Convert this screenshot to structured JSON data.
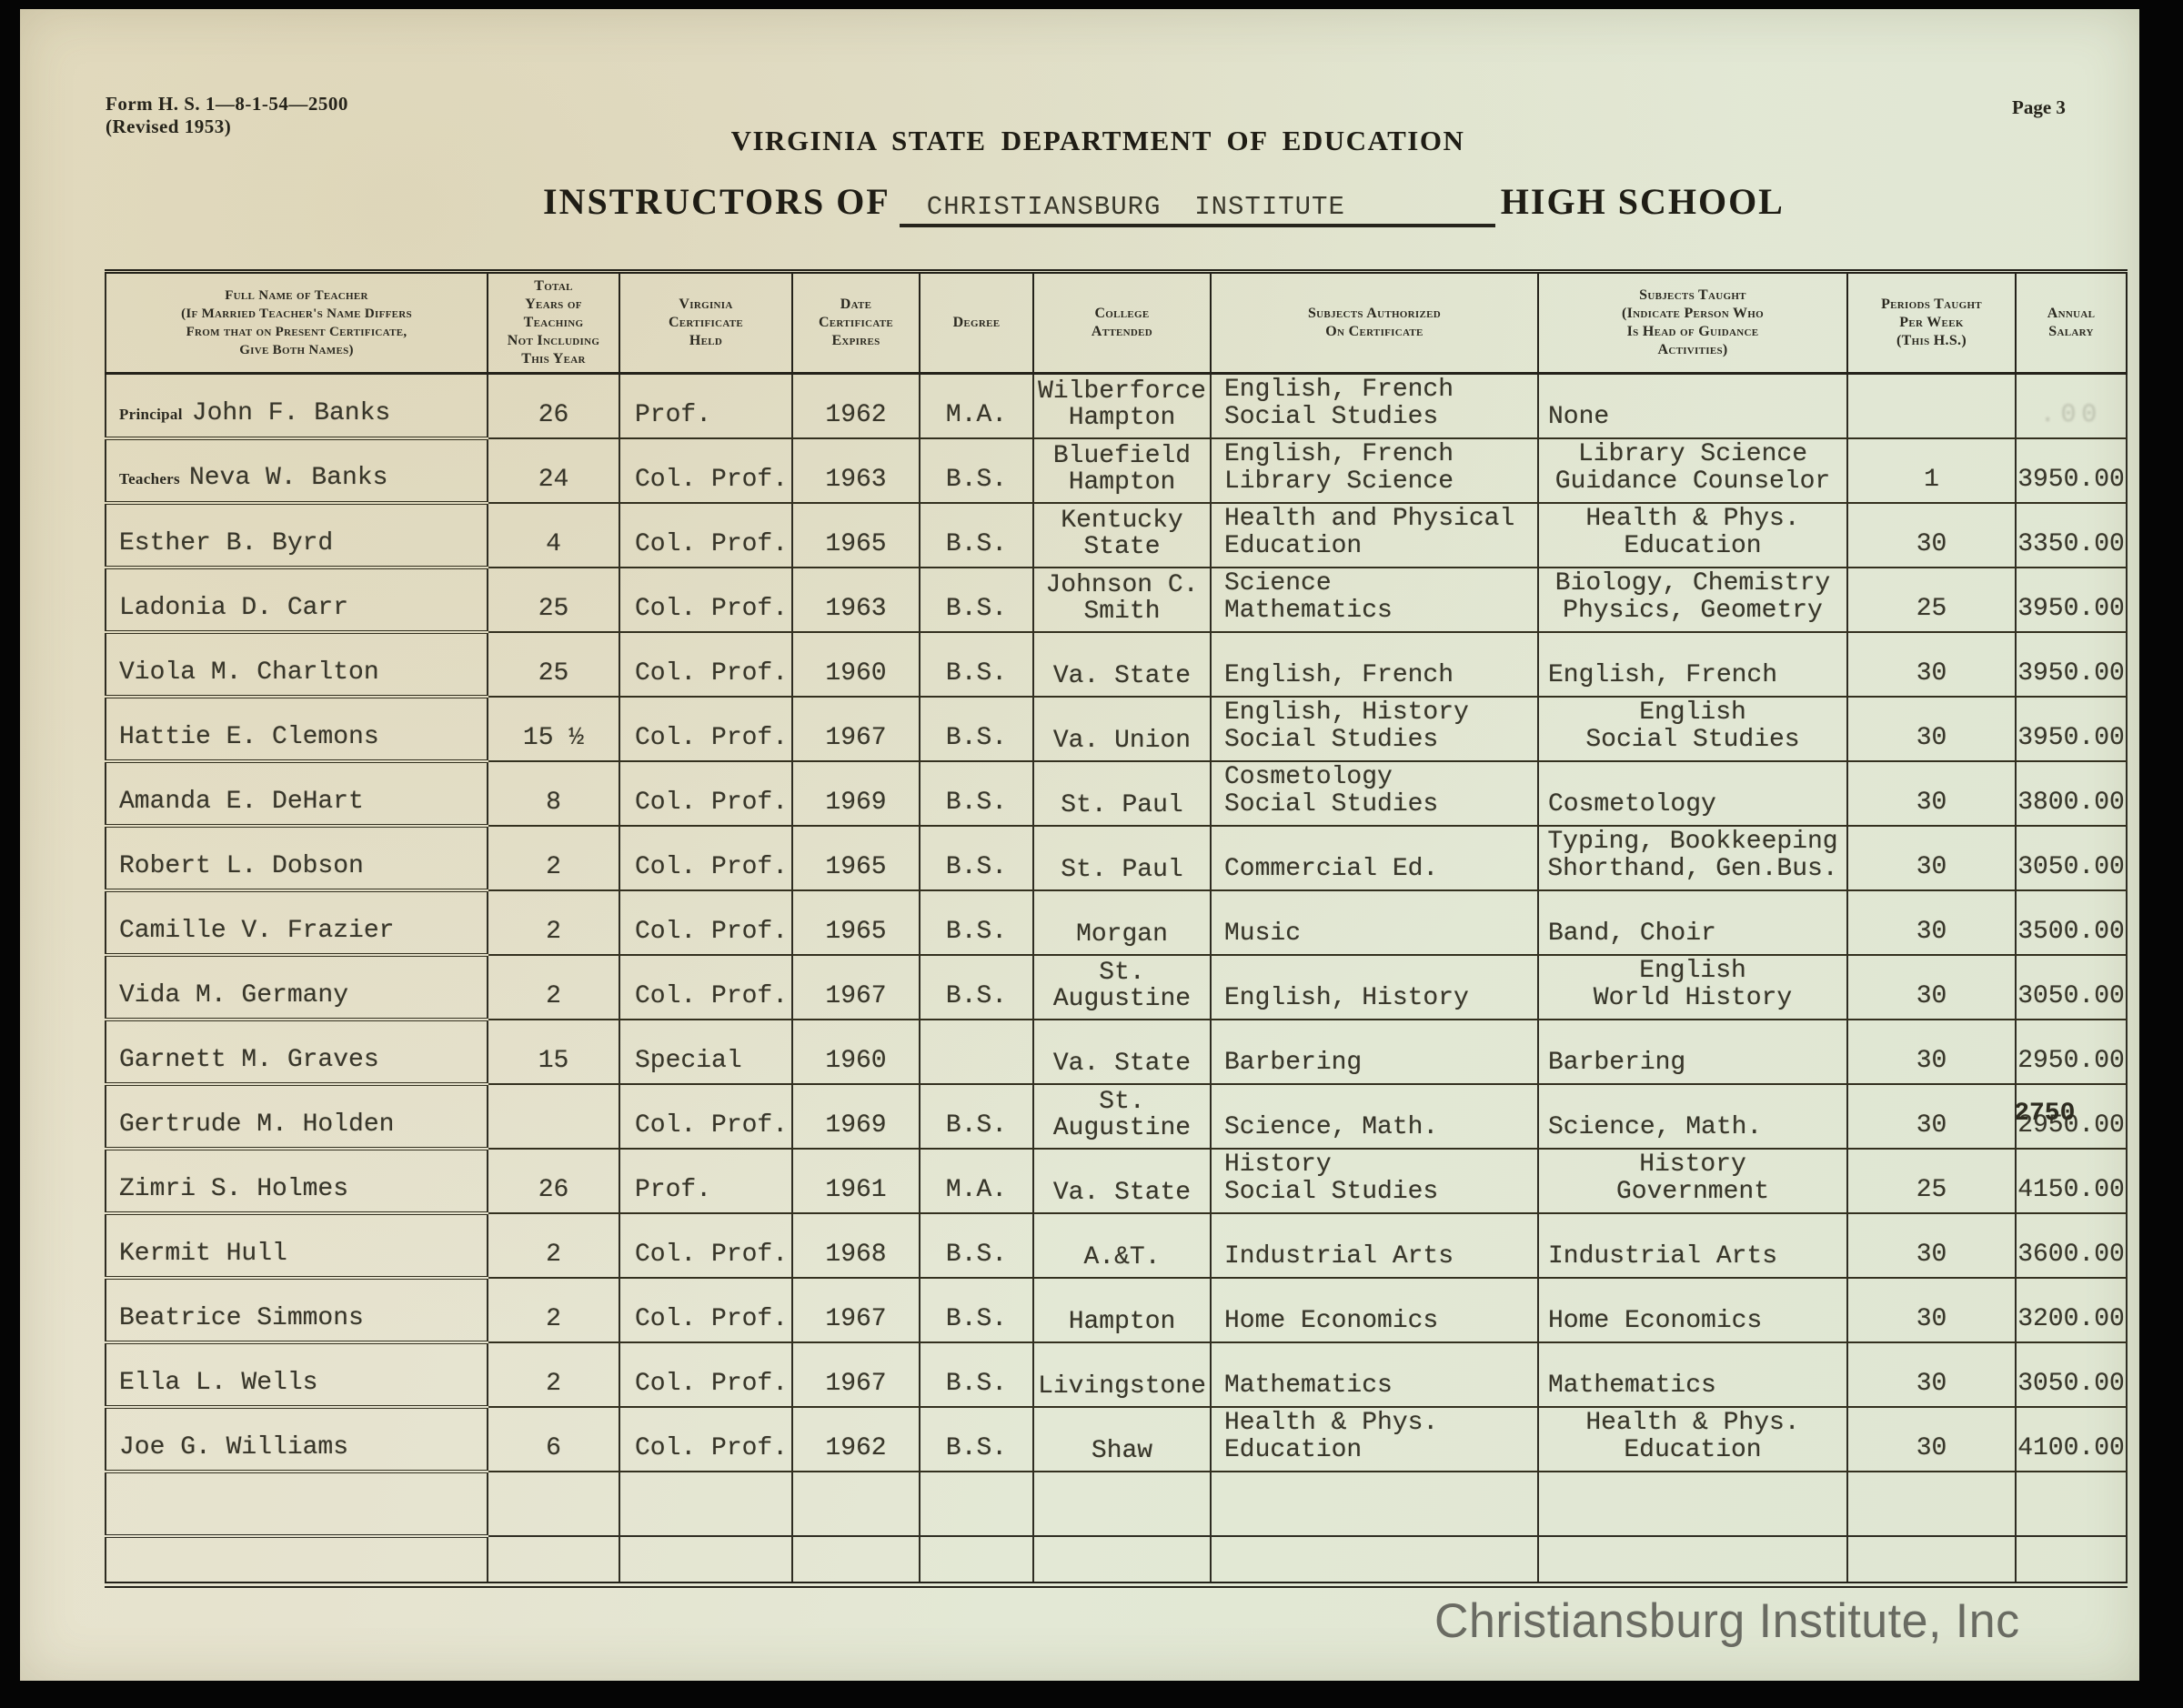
{
  "meta": {
    "form_number": "Form H. S. 1—8-1-54—2500",
    "revision": "(Revised 1953)",
    "page": "Page 3"
  },
  "header": {
    "department": "VIRGINIA STATE DEPARTMENT OF EDUCATION",
    "instructors_of": "INSTRUCTORS OF",
    "school_name": "CHRISTIANSBURG  INSTITUTE",
    "high_school": "HIGH SCHOOL"
  },
  "table": {
    "columns": [
      [
        "Full Name of Teacher",
        "(If Married Teacher's Name Differs",
        "From that on Present Certificate,",
        "Give Both Names)"
      ],
      [
        "Total",
        "Years of",
        "Teaching",
        "Not Including",
        "This Year"
      ],
      [
        "Virginia",
        "Certificate",
        "Held"
      ],
      [
        "Date",
        "Certificate",
        "Expires"
      ],
      [
        "Degree"
      ],
      [
        "College",
        "Attended"
      ],
      [
        "Subjects Authorized",
        "On Certificate"
      ],
      [
        "Subjects Taught",
        "(Indicate Person Who",
        "Is Head of Guidance",
        "Activities)"
      ],
      [
        "Periods Taught",
        "Per Week",
        "(This H.S.)"
      ],
      [
        "Annual",
        "Salary"
      ]
    ],
    "rows": [
      {
        "label": "Principal",
        "name": "John F. Banks",
        "years": "26",
        "cert": "Prof.",
        "expires": "1962",
        "degree": "M.A.",
        "college": [
          "Wilberforce",
          "Hampton"
        ],
        "auth": [
          "English, French",
          "Social Studies"
        ],
        "taught": [
          "None"
        ],
        "periods": "",
        "salary": "",
        "salary_faint": ".00"
      },
      {
        "label": "Teachers",
        "name": "Neva W. Banks",
        "years": "24",
        "cert": "Col. Prof.",
        "expires": "1963",
        "degree": "B.S.",
        "college": [
          "Bluefield",
          "Hampton"
        ],
        "auth": [
          "English, French",
          "Library Science"
        ],
        "taught": [
          "Library Science",
          "Guidance Counselor"
        ],
        "periods": "1",
        "salary": "3950.00"
      },
      {
        "label": "",
        "name": "Esther B. Byrd",
        "years": "4",
        "cert": "Col. Prof.",
        "expires": "1965",
        "degree": "B.S.",
        "college": [
          "Kentucky",
          "State"
        ],
        "auth": [
          "Health and Physical",
          "Education"
        ],
        "taught": [
          "Health & Phys.",
          "Education"
        ],
        "periods": "30",
        "salary": "3350.00"
      },
      {
        "label": "",
        "name": "Ladonia D. Carr",
        "years": "25",
        "cert": "Col. Prof.",
        "expires": "1963",
        "degree": "B.S.",
        "college": [
          "Johnson C.",
          "Smith"
        ],
        "auth": [
          "Science",
          "Mathematics"
        ],
        "taught": [
          "Biology, Chemistry",
          "Physics, Geometry"
        ],
        "periods": "25",
        "salary": "3950.00"
      },
      {
        "label": "",
        "name": "Viola M. Charlton",
        "years": "25",
        "cert": "Col. Prof.",
        "expires": "1960",
        "degree": "B.S.",
        "college": [
          "Va. State"
        ],
        "auth": [
          "English, French"
        ],
        "taught": [
          "English, French"
        ],
        "periods": "30",
        "salary": "3950.00"
      },
      {
        "label": "",
        "name": "Hattie E. Clemons",
        "years": "15 ½",
        "cert": "Col. Prof.",
        "expires": "1967",
        "degree": "B.S.",
        "college": [
          "Va. Union"
        ],
        "auth": [
          "English, History",
          "Social Studies"
        ],
        "taught": [
          "English",
          "Social Studies"
        ],
        "periods": "30",
        "salary": "3950.00"
      },
      {
        "label": "",
        "name": "Amanda E. DeHart",
        "years": "8",
        "cert": "Col. Prof.",
        "expires": "1969",
        "degree": "B.S.",
        "college": [
          "St. Paul"
        ],
        "auth": [
          "Cosmetology",
          "Social Studies"
        ],
        "taught": [
          "Cosmetology"
        ],
        "periods": "30",
        "salary": "3800.00"
      },
      {
        "label": "",
        "name": "Robert L. Dobson",
        "years": "2",
        "cert": "Col. Prof.",
        "expires": "1965",
        "degree": "B.S.",
        "college": [
          "St. Paul"
        ],
        "auth": [
          "Commercial Ed."
        ],
        "taught": [
          "Typing, Bookkeeping",
          "Shorthand, Gen.Bus."
        ],
        "periods": "30",
        "salary": "3050.00"
      },
      {
        "label": "",
        "name": "Camille V. Frazier",
        "years": "2",
        "cert": "Col. Prof.",
        "expires": "1965",
        "degree": "B.S.",
        "college": [
          "Morgan"
        ],
        "auth": [
          "Music"
        ],
        "taught": [
          "Band, Choir"
        ],
        "periods": "30",
        "salary": "3500.00"
      },
      {
        "label": "",
        "name": "Vida M. Germany",
        "years": "2",
        "cert": "Col. Prof.",
        "expires": "1967",
        "degree": "B.S.",
        "college": [
          "St.",
          "Augustine"
        ],
        "auth": [
          "English, History"
        ],
        "taught": [
          "English",
          "World History"
        ],
        "periods": "30",
        "salary": "3050.00"
      },
      {
        "label": "",
        "name": "Garnett M. Graves",
        "years": "15",
        "cert": "Special",
        "expires": "1960",
        "degree": "",
        "college": [
          "Va. State"
        ],
        "auth": [
          "Barbering"
        ],
        "taught": [
          "Barbering"
        ],
        "periods": "30",
        "salary": "2950.00"
      },
      {
        "label": "",
        "name": "Gertrude M. Holden",
        "years": "",
        "cert": "Col. Prof.",
        "expires": "1969",
        "degree": "B.S.",
        "college": [
          "St.",
          "Augustine"
        ],
        "auth": [
          "Science, Math."
        ],
        "taught": [
          "Science, Math."
        ],
        "periods": "30",
        "salary": "2950.00",
        "salary_ghost": "2750"
      },
      {
        "label": "",
        "name": "Zimri S. Holmes",
        "years": "26",
        "cert": "Prof.",
        "expires": "1961",
        "degree": "M.A.",
        "college": [
          "Va. State"
        ],
        "auth": [
          "History",
          "Social Studies"
        ],
        "taught": [
          "History",
          "Government"
        ],
        "periods": "25",
        "salary": "4150.00"
      },
      {
        "label": "",
        "name": "Kermit Hull",
        "years": "2",
        "cert": "Col. Prof.",
        "expires": "1968",
        "degree": "B.S.",
        "college": [
          "A.&T."
        ],
        "auth": [
          "Industrial Arts"
        ],
        "taught": [
          "Industrial Arts"
        ],
        "periods": "30",
        "salary": "3600.00"
      },
      {
        "label": "",
        "name": "Beatrice Simmons",
        "years": "2",
        "cert": "Col. Prof.",
        "expires": "1967",
        "degree": "B.S.",
        "college": [
          "Hampton"
        ],
        "auth": [
          "Home Economics"
        ],
        "taught": [
          "Home Economics"
        ],
        "periods": "30",
        "salary": "3200.00"
      },
      {
        "label": "",
        "name": "Ella L. Wells",
        "years": "2",
        "cert": "Col. Prof.",
        "expires": "1967",
        "degree": "B.S.",
        "college": [
          "Livingstone"
        ],
        "auth": [
          "Mathematics"
        ],
        "taught": [
          "Mathematics"
        ],
        "periods": "30",
        "salary": "3050.00"
      },
      {
        "label": "",
        "name": "Joe G. Williams",
        "years": "6",
        "cert": "Col. Prof.",
        "expires": "1962",
        "degree": "B.S.",
        "college": [
          "Shaw"
        ],
        "auth": [
          "Health & Phys.",
          "Education"
        ],
        "taught": [
          "Health & Phys.",
          "Education"
        ],
        "periods": "30",
        "salary": "4100.00"
      }
    ]
  },
  "watermark": "Christiansburg Institute, Inc"
}
